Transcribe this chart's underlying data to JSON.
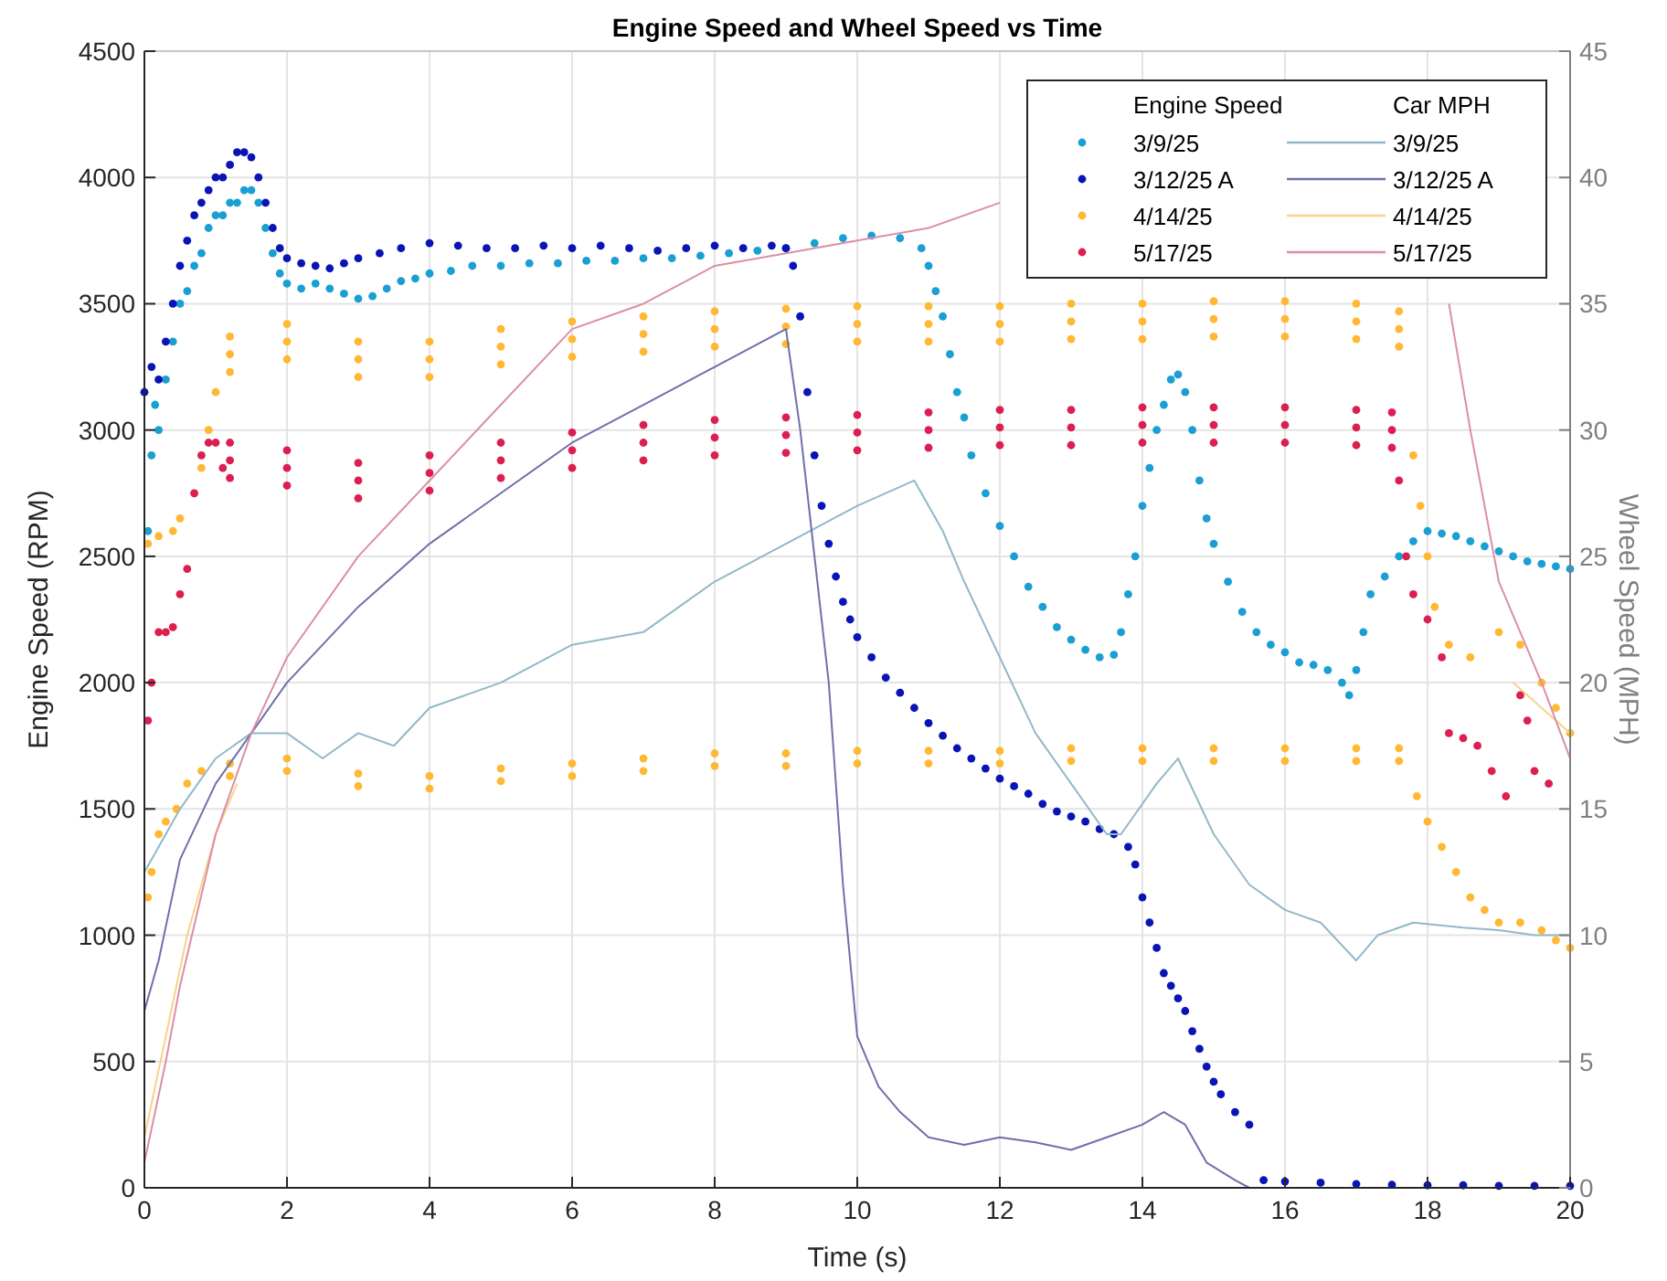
{
  "chart_data": {
    "type": "scatter",
    "title": "Engine Speed and Wheel Speed vs Time",
    "xlabel": "Time (s)",
    "ylabel": "Engine Speed (RPM)",
    "y2label": "Wheel Speed (MPH)",
    "xlim": [
      0,
      20
    ],
    "xticks": [
      0,
      2,
      4,
      6,
      8,
      10,
      12,
      14,
      16,
      18,
      20
    ],
    "ylim": [
      0,
      4500
    ],
    "yticks": [
      0,
      500,
      1000,
      1500,
      2000,
      2500,
      3000,
      3500,
      4000,
      4500
    ],
    "y2lim": [
      0,
      45
    ],
    "y2ticks": [
      0,
      5,
      10,
      15,
      20,
      25,
      30,
      35,
      40,
      45
    ],
    "grid": true,
    "legend": "top right",
    "annotations": [
      "Engine Speed",
      "Car MPH"
    ],
    "series": [
      {
        "name": "3/9/25",
        "color": "#1a9fd3",
        "x": [
          0.05,
          0.1,
          0.15,
          0.2,
          0.3,
          0.4,
          0.5,
          0.6,
          0.7,
          0.8,
          0.9,
          1.0,
          1.1,
          1.2,
          1.3,
          1.4,
          1.5,
          1.6,
          1.7,
          1.8,
          1.9,
          2.0,
          2.2,
          2.4,
          2.6,
          2.8,
          3.0,
          3.2,
          3.4,
          3.6,
          3.8,
          4.0,
          4.3,
          4.6,
          5.0,
          5.4,
          5.8,
          6.2,
          6.6,
          7.0,
          7.4,
          7.8,
          8.2,
          8.6,
          9.0,
          9.4,
          9.8,
          10.2,
          10.6,
          10.9,
          11.0,
          11.1,
          11.2,
          11.3,
          11.4,
          11.5,
          11.6,
          11.8,
          12.0,
          12.2,
          12.4,
          12.6,
          12.8,
          13.0,
          13.2,
          13.4,
          13.6,
          13.7,
          13.8,
          13.9,
          14.0,
          14.1,
          14.2,
          14.3,
          14.4,
          14.5,
          14.6,
          14.7,
          14.8,
          14.9,
          15.0,
          15.2,
          15.4,
          15.6,
          15.8,
          16.0,
          16.2,
          16.4,
          16.6,
          16.8,
          16.9,
          17.0,
          17.1,
          17.2,
          17.4,
          17.6,
          17.8,
          18.0,
          18.2,
          18.4,
          18.6,
          18.8,
          19.0,
          19.2,
          19.4,
          19.6,
          19.8,
          20.0
        ],
        "values": [
          2600,
          2900,
          3100,
          3000,
          3200,
          3350,
          3500,
          3550,
          3650,
          3700,
          3800,
          3850,
          3850,
          3900,
          3900,
          3950,
          3950,
          3900,
          3800,
          3700,
          3620,
          3580,
          3560,
          3580,
          3560,
          3540,
          3520,
          3530,
          3560,
          3590,
          3600,
          3620,
          3630,
          3650,
          3650,
          3660,
          3660,
          3670,
          3670,
          3680,
          3680,
          3690,
          3700,
          3710,
          3720,
          3740,
          3760,
          3770,
          3760,
          3720,
          3650,
          3550,
          3450,
          3300,
          3150,
          3050,
          2900,
          2750,
          2620,
          2500,
          2380,
          2300,
          2220,
          2170,
          2130,
          2100,
          2110,
          2200,
          2350,
          2500,
          2700,
          2850,
          3000,
          3100,
          3200,
          3220,
          3150,
          3000,
          2800,
          2650,
          2550,
          2400,
          2280,
          2200,
          2150,
          2120,
          2080,
          2070,
          2050,
          2000,
          1950,
          2050,
          2200,
          2350,
          2420,
          2500,
          2560,
          2600,
          2590,
          2580,
          2560,
          2540,
          2520,
          2500,
          2480,
          2470,
          2460,
          2450
        ]
      },
      {
        "name": "3/12/25 A",
        "color": "#0a14b4",
        "x": [
          0,
          0.1,
          0.2,
          0.3,
          0.4,
          0.5,
          0.6,
          0.7,
          0.8,
          0.9,
          1.0,
          1.1,
          1.2,
          1.3,
          1.4,
          1.5,
          1.6,
          1.7,
          1.8,
          1.9,
          2.0,
          2.2,
          2.4,
          2.6,
          2.8,
          3.0,
          3.3,
          3.6,
          4.0,
          4.4,
          4.8,
          5.2,
          5.6,
          6.0,
          6.4,
          6.8,
          7.2,
          7.6,
          8.0,
          8.4,
          8.8,
          9.0,
          9.1,
          9.2,
          9.3,
          9.4,
          9.5,
          9.6,
          9.7,
          9.8,
          9.9,
          10.0,
          10.2,
          10.4,
          10.6,
          10.8,
          11.0,
          11.2,
          11.4,
          11.6,
          11.8,
          12.0,
          12.2,
          12.4,
          12.6,
          12.8,
          13.0,
          13.2,
          13.4,
          13.6,
          13.8,
          13.9,
          14.0,
          14.1,
          14.2,
          14.3,
          14.4,
          14.5,
          14.6,
          14.7,
          14.8,
          14.9,
          15.0,
          15.1,
          15.3,
          15.5,
          15.7,
          16.0,
          16.5,
          17.0,
          17.5,
          18.0,
          18.5,
          19.0,
          19.5,
          20.0
        ],
        "values": [
          3150,
          3250,
          3200,
          3350,
          3500,
          3650,
          3750,
          3850,
          3900,
          3950,
          4000,
          4000,
          4050,
          4100,
          4100,
          4080,
          4000,
          3900,
          3800,
          3720,
          3680,
          3660,
          3650,
          3640,
          3660,
          3680,
          3700,
          3720,
          3740,
          3730,
          3720,
          3720,
          3730,
          3720,
          3730,
          3720,
          3710,
          3720,
          3730,
          3720,
          3730,
          3720,
          3650,
          3450,
          3150,
          2900,
          2700,
          2550,
          2420,
          2320,
          2250,
          2180,
          2100,
          2020,
          1960,
          1900,
          1840,
          1790,
          1740,
          1700,
          1660,
          1620,
          1590,
          1560,
          1520,
          1490,
          1470,
          1450,
          1420,
          1400,
          1350,
          1280,
          1150,
          1050,
          950,
          850,
          800,
          750,
          700,
          620,
          550,
          480,
          420,
          370,
          300,
          250,
          30,
          25,
          20,
          15,
          12,
          10,
          10,
          8,
          8,
          8
        ]
      },
      {
        "name": "4/14/25",
        "color": "#ffb833",
        "x": [
          0.05,
          0.1,
          0.2,
          0.3,
          0.45,
          0.6,
          0.8,
          0.05,
          0.2,
          0.4,
          0.5,
          0.7,
          0.8,
          0.9,
          1.0,
          1.2,
          1.2,
          1.2,
          2,
          2,
          2,
          3,
          3,
          3,
          4,
          4,
          4,
          5,
          5,
          5,
          6,
          6,
          6,
          7,
          7,
          7,
          8,
          8,
          8,
          9,
          9,
          9,
          10,
          10,
          10,
          11,
          11,
          11,
          12,
          12,
          12,
          13,
          13,
          13,
          14,
          14,
          14,
          15,
          15,
          15,
          16,
          16,
          16,
          17,
          17,
          17,
          17.6,
          17.6,
          17.6,
          1.2,
          1.2,
          2,
          2,
          3,
          3,
          4,
          4,
          5,
          5,
          6,
          6,
          7,
          7,
          8,
          8,
          9,
          9,
          10,
          10,
          11,
          11,
          12,
          12,
          13,
          13,
          14,
          14,
          15,
          15,
          16,
          16,
          17,
          17,
          17.6,
          17.6,
          17.8,
          17.9,
          18.0,
          18.1,
          18.3,
          18.6,
          19.0,
          19.3,
          19.6,
          19.8,
          20,
          17.85,
          18.0,
          18.2,
          18.4,
          18.6,
          18.8,
          19.0,
          19.3,
          19.6,
          19.8,
          20
        ],
        "values": [
          1150,
          1250,
          1400,
          1450,
          1500,
          1600,
          1650,
          2550,
          2580,
          2600,
          2650,
          2750,
          2850,
          3000,
          3150,
          3370,
          3300,
          3230,
          3420,
          3350,
          3280,
          3350,
          3280,
          3210,
          3350,
          3280,
          3210,
          3400,
          3330,
          3260,
          3430,
          3360,
          3290,
          3450,
          3380,
          3310,
          3470,
          3400,
          3330,
          3480,
          3410,
          3340,
          3490,
          3420,
          3350,
          3490,
          3420,
          3350,
          3490,
          3420,
          3350,
          3500,
          3430,
          3360,
          3500,
          3430,
          3360,
          3510,
          3440,
          3370,
          3510,
          3440,
          3370,
          3500,
          3430,
          3360,
          3470,
          3400,
          3330,
          1680,
          1630,
          1700,
          1650,
          1640,
          1590,
          1630,
          1580,
          1660,
          1610,
          1680,
          1630,
          1700,
          1650,
          1720,
          1670,
          1720,
          1670,
          1730,
          1680,
          1730,
          1680,
          1730,
          1680,
          1740,
          1690,
          1740,
          1690,
          1740,
          1690,
          1740,
          1690,
          1740,
          1690,
          1740,
          1690,
          2900,
          2700,
          2500,
          2300,
          2150,
          2100,
          2200,
          2150,
          2000,
          1900,
          1800,
          1550,
          1450,
          1350,
          1250,
          1150,
          1100,
          1050,
          1050,
          1020,
          980,
          950
        ]
      },
      {
        "name": "5/17/25",
        "color": "#dc1f50",
        "x": [
          0.05,
          0.1,
          0.2,
          0.3,
          0.4,
          0.5,
          0.6,
          0.7,
          0.8,
          0.9,
          1.0,
          1.1,
          1.2,
          1.2,
          1.2,
          2,
          2,
          2,
          3,
          3,
          3,
          4,
          4,
          4,
          5,
          5,
          5,
          6,
          6,
          6,
          7,
          7,
          7,
          8,
          8,
          8,
          9,
          9,
          9,
          10,
          10,
          10,
          11,
          11,
          11,
          12,
          12,
          12,
          13,
          13,
          13,
          14,
          14,
          14,
          15,
          15,
          15,
          16,
          16,
          16,
          17,
          17,
          17,
          17.5,
          17.5,
          17.5,
          17.6,
          17.7,
          17.8,
          18.0,
          18.2,
          18.3,
          18.5,
          18.7,
          18.9,
          19.1,
          19.3,
          19.4,
          19.5,
          19.7
        ],
        "values": [
          1850,
          2000,
          2200,
          2200,
          2220,
          2350,
          2450,
          2750,
          2900,
          2950,
          2950,
          2850,
          2950,
          2880,
          2810,
          2920,
          2850,
          2780,
          2870,
          2800,
          2730,
          2900,
          2830,
          2760,
          2950,
          2880,
          2810,
          2990,
          2920,
          2850,
          3020,
          2950,
          2880,
          3040,
          2970,
          2900,
          3050,
          2980,
          2910,
          3060,
          2990,
          2920,
          3070,
          3000,
          2930,
          3080,
          3010,
          2940,
          3080,
          3010,
          2940,
          3090,
          3020,
          2950,
          3090,
          3020,
          2950,
          3090,
          3020,
          2950,
          3080,
          3010,
          2940,
          3070,
          3000,
          2930,
          2800,
          2500,
          2350,
          2250,
          2100,
          1800,
          1780,
          1750,
          1650,
          1550,
          1950,
          1850,
          1650,
          1600
        ]
      },
      {
        "name": "3/9/25",
        "type": "line",
        "axis": "y2",
        "color": "#92b8c9",
        "x": [
          0,
          0.5,
          1,
          1.5,
          2,
          2.5,
          3,
          3.5,
          4,
          5,
          6,
          7,
          8,
          9,
          10,
          10.8,
          11.2,
          11.5,
          12,
          12.5,
          13,
          13.5,
          13.7,
          14.2,
          14.5,
          15,
          15.5,
          16,
          16.5,
          17,
          17.3,
          17.8,
          18.5,
          19,
          19.5,
          20
        ],
        "values": [
          12.5,
          15,
          17,
          18,
          18,
          17,
          18,
          17.5,
          19,
          20,
          21.5,
          22,
          24,
          25.5,
          27,
          28,
          26,
          24,
          21,
          18,
          16,
          14,
          14,
          16,
          17,
          14,
          12,
          11,
          10.5,
          9,
          10,
          10.5,
          10.3,
          10.2,
          10,
          10
        ]
      },
      {
        "name": "3/12/25 A",
        "type": "line",
        "axis": "y2",
        "color": "#6e70aa",
        "x": [
          0,
          0.2,
          0.5,
          1,
          1.5,
          2,
          3,
          4,
          5,
          6,
          7,
          8,
          9,
          9.2,
          9.4,
          9.6,
          9.8,
          10,
          10.3,
          10.6,
          11,
          11.5,
          12,
          12.5,
          13,
          13.5,
          14,
          14.3,
          14.6,
          14.9,
          15.3,
          15.5,
          20
        ],
        "values": [
          7,
          9,
          13,
          16,
          18,
          20,
          23,
          25.5,
          27.5,
          29.5,
          31,
          32.5,
          34,
          30,
          25,
          20,
          12,
          6,
          4,
          3,
          2,
          1.7,
          2,
          1.8,
          1.5,
          2,
          2.5,
          3,
          2.5,
          1,
          0.3,
          0,
          0
        ]
      },
      {
        "name": "4/14/25",
        "type": "line",
        "axis": "y2",
        "color": "#f7d28a",
        "x": [
          0,
          0.3,
          0.6,
          1,
          1.3,
          10,
          19.2,
          19.6,
          20
        ],
        "values": [
          2,
          6,
          10,
          14,
          16,
          null,
          20,
          19,
          18
        ]
      },
      {
        "name": "5/17/25",
        "type": "line",
        "axis": "y2",
        "color": "#dc8ea6",
        "x": [
          0,
          0.3,
          0.5,
          1,
          1.5,
          2,
          3,
          4,
          5,
          6,
          7,
          8,
          9,
          10,
          11,
          12,
          13,
          14,
          15,
          16,
          17,
          17.8,
          18,
          18.3,
          18.6,
          19,
          19.3,
          19.6,
          20
        ],
        "values": [
          1,
          5,
          8,
          14,
          18,
          21,
          25,
          28,
          31,
          34,
          35,
          36.5,
          37,
          37.5,
          38,
          39,
          null,
          null,
          null,
          null,
          null,
          null,
          null,
          35,
          30,
          24,
          22,
          20,
          17
        ]
      }
    ]
  }
}
